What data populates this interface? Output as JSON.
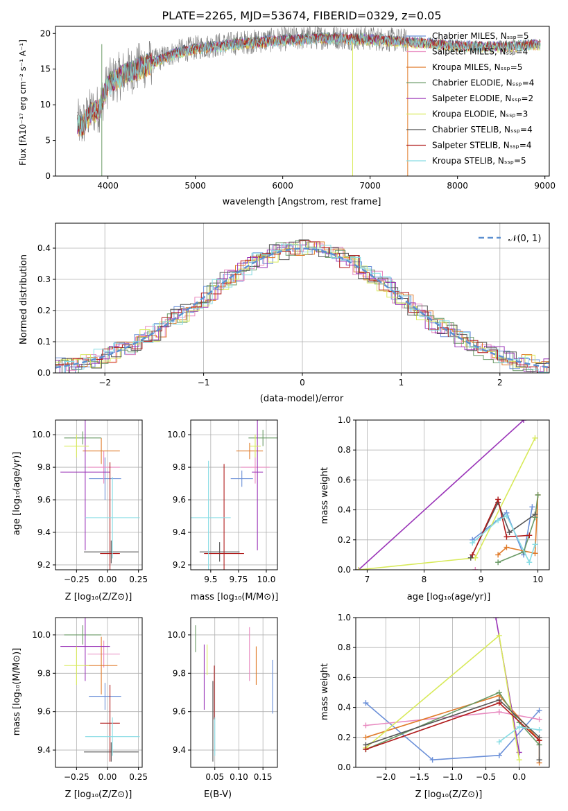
{
  "figure_title": "PLATE=2265, MJD=53674, FIBERID=0329, z=0.05",
  "series_styles": [
    {
      "name": "Chabrier MILES",
      "nssp": "5",
      "color": "#6a8fd8"
    },
    {
      "name": "Salpeter MILES",
      "nssp": "4",
      "color": "#e88ac0"
    },
    {
      "name": "Kroupa MILES",
      "nssp": "5",
      "color": "#e07b2a"
    },
    {
      "name": "Chabrier ELODIE",
      "nssp": "4",
      "color": "#6a9a66"
    },
    {
      "name": "Salpeter ELODIE",
      "nssp": "2",
      "color": "#9a34b8"
    },
    {
      "name": "Kroupa ELODIE",
      "nssp": "3",
      "color": "#d8ea5a"
    },
    {
      "name": "Chabrier STELIB",
      "nssp": "4",
      "color": "#555555"
    },
    {
      "name": "Salpeter STELIB",
      "nssp": "4",
      "color": "#b01a1a"
    },
    {
      "name": "Kroupa STELIB",
      "nssp": "5",
      "color": "#86dce4"
    }
  ],
  "chart_data": [
    {
      "id": "spectrum",
      "type": "line",
      "xlabel": "wavelength [Angstrom, rest frame]",
      "ylabel": "Flux [fλ10⁻¹⁷ erg cm⁻² s⁻¹ A⁻¹]",
      "xlim": [
        3400,
        9050
      ],
      "ylim": [
        0,
        21
      ],
      "xticks": [
        "4000",
        "5000",
        "6000",
        "7000",
        "8000",
        "9000"
      ],
      "yticks": [
        "0",
        "5",
        "10",
        "15",
        "20"
      ],
      "legend": [
        "Chabrier MILES, Nₛₛₚ=5",
        "Salpeter MILES, Nₛₛₚ=4",
        "Kroupa MILES, Nₛₛₚ=5",
        "Chabrier ELODIE, Nₛₛₚ=4",
        "Salpeter ELODIE, Nₛₛₚ=2",
        "Kroupa ELODIE, Nₛₛₚ=3",
        "Chabrier STELIB, Nₛₛₚ=4",
        "Salpeter STELIB, Nₛₛₚ=4",
        "Kroupa STELIB, Nₛₛₚ=5"
      ],
      "continuum": [
        [
          3650,
          7.5
        ],
        [
          3700,
          7
        ],
        [
          3800,
          9
        ],
        [
          3900,
          9.5
        ],
        [
          4000,
          13
        ],
        [
          4200,
          14.5
        ],
        [
          4400,
          15.5
        ],
        [
          4600,
          16.5
        ],
        [
          4800,
          17.5
        ],
        [
          5000,
          18
        ],
        [
          5200,
          18.3
        ],
        [
          5500,
          18.7
        ],
        [
          6000,
          19.2
        ],
        [
          6500,
          19.5
        ],
        [
          7000,
          19.3
        ],
        [
          7400,
          19.0
        ],
        [
          7800,
          18.6
        ],
        [
          8200,
          18.3
        ],
        [
          8600,
          18.3
        ],
        [
          8800,
          18.5
        ],
        [
          8950,
          18.6
        ]
      ],
      "model_range": [
        3650,
        8950
      ],
      "data_range": [
        3650,
        7420
      ],
      "drops": [
        [
          3930,
          0
        ],
        [
          6800,
          0
        ],
        [
          7430,
          0
        ]
      ]
    },
    {
      "id": "residuals",
      "type": "histogram",
      "xlabel": "(data-model)/error",
      "ylabel": "Normed distribution",
      "xlim": [
        -2.5,
        2.5
      ],
      "ylim": [
        0,
        0.48
      ],
      "xticks": [
        "−2",
        "−1",
        "0",
        "1",
        "2"
      ],
      "yticks": [
        "0.0",
        "0.1",
        "0.2",
        "0.3",
        "0.4"
      ],
      "legend": "𝒩(0, 1)",
      "bin_width": 0.1
    },
    {
      "id": "age_vs_Z",
      "type": "errorbar",
      "xlabel": "Z [log₁₀(Z/Z⊙)]",
      "ylabel": "age  [log₁₀(age/yr)]",
      "xlim": [
        -0.42,
        0.28
      ],
      "ylim": [
        9.17,
        10.09
      ],
      "xticks": [
        "−0.25",
        "0.00",
        "0.25"
      ],
      "yticks": [
        "9.2",
        "9.4",
        "9.6",
        "9.8",
        "10.0"
      ],
      "points": [
        {
          "x": -0.02,
          "xerr": 0.13,
          "y": 9.73,
          "yerr": 0.13
        },
        {
          "x": -0.03,
          "xerr": 0.13,
          "y": 9.8,
          "yerr": 0.1
        },
        {
          "x": -0.05,
          "xerr": 0.15,
          "y": 9.9,
          "yerr": 0.08
        },
        {
          "x": -0.2,
          "xerr": 0.15,
          "y": 9.98,
          "yerr": 0.04
        },
        {
          "x": -0.18,
          "xerr": 0.2,
          "y": 9.77,
          "yerr": 0.48
        },
        {
          "x": -0.25,
          "xerr": 0.1,
          "y": 9.93,
          "yerr": 0.07
        },
        {
          "x": 0.03,
          "xerr": 0.22,
          "y": 9.28,
          "yerr": 0.07
        },
        {
          "x": 0.02,
          "xerr": 0.08,
          "y": 9.27,
          "yerr": 0.56
        },
        {
          "x": 0.04,
          "xerr": 0.22,
          "y": 9.49,
          "yerr": 0.25
        }
      ]
    },
    {
      "id": "age_vs_mass",
      "type": "errorbar",
      "xlabel": "mass [log₁₀(M/M⊙)]",
      "ylabel": "",
      "xlim": [
        9.32,
        10.1
      ],
      "ylim": [
        9.17,
        10.09
      ],
      "xticks": [
        "9.5",
        "9.75",
        "10.0"
      ],
      "yticks": [
        "9.2",
        "9.4",
        "9.6",
        "9.8",
        "10.0"
      ],
      "points": [
        {
          "x": 9.78,
          "xerr": 0.1,
          "y": 9.73,
          "yerr": 0.05
        },
        {
          "x": 9.9,
          "xerr": 0.13,
          "y": 9.8,
          "yerr": 0.1
        },
        {
          "x": 9.85,
          "xerr": 0.12,
          "y": 9.9,
          "yerr": 0.05
        },
        {
          "x": 9.97,
          "xerr": 0.13,
          "y": 9.98,
          "yerr": 0.05
        },
        {
          "x": 9.92,
          "xerr": 0.05,
          "y": 9.77,
          "yerr": 0.48
        },
        {
          "x": 9.9,
          "xerr": 0.05,
          "y": 9.93,
          "yerr": 0.07
        },
        {
          "x": 9.58,
          "xerr": 0.18,
          "y": 9.28,
          "yerr": 0.06
        },
        {
          "x": 9.62,
          "xerr": 0.18,
          "y": 9.27,
          "yerr": 0.55
        },
        {
          "x": 9.48,
          "xerr": 0.2,
          "y": 9.49,
          "yerr": 0.35
        }
      ]
    },
    {
      "id": "mw_vs_age",
      "type": "line",
      "xlabel": "age  [log₁₀(age/yr)]",
      "ylabel": "mass weight",
      "xlim": [
        6.8,
        10.2
      ],
      "ylim": [
        0,
        1
      ],
      "xticks": [
        "7",
        "8",
        "9",
        "10"
      ],
      "yticks": [
        "0.0",
        "0.2",
        "0.4",
        "0.6",
        "0.8",
        "1.0"
      ],
      "series": [
        {
          "x": [
            8.85,
            9.45,
            9.75,
            9.9
          ],
          "y": [
            0.2,
            0.38,
            0.1,
            0.42
          ]
        },
        {
          "x": 8.9,
          "y": 0
        },
        {
          "x": [
            9.3,
            9.45,
            9.95,
            10.0
          ],
          "y": [
            0.1,
            0.15,
            0.11,
            0.5
          ]
        },
        {
          "x": [
            9.3,
            9.75,
            9.95,
            10.0
          ],
          "y": [
            0.05,
            0.12,
            0.35,
            0.5
          ]
        },
        {
          "x": [
            6.85,
            9.75
          ],
          "y": [
            0.0,
            1.0
          ]
        },
        {
          "x": [
            6.85,
            8.9,
            9.95
          ],
          "y": [
            0.0,
            0.08,
            0.88
          ]
        },
        {
          "x": [
            8.82,
            9.3,
            9.5,
            9.95
          ],
          "y": [
            0.08,
            0.45,
            0.25,
            0.37
          ]
        },
        {
          "x": [
            8.85,
            9.3,
            9.45,
            9.85
          ],
          "y": [
            0.1,
            0.47,
            0.22,
            0.23
          ]
        },
        {
          "x": [
            8.85,
            9.3,
            9.45,
            9.85,
            9.95
          ],
          "y": [
            0.18,
            0.33,
            0.36,
            0.05,
            0.17
          ]
        }
      ]
    },
    {
      "id": "mass_vs_Z",
      "type": "errorbar",
      "xlabel": "Z [log₁₀(Z/Z⊙)]",
      "ylabel": "mass [log₁₀(M/M⊙)]",
      "xlim": [
        -0.42,
        0.28
      ],
      "ylim": [
        9.31,
        10.09
      ],
      "xticks": [
        "−0.25",
        "0.00",
        "0.25"
      ],
      "yticks": [
        "9.4",
        "9.6",
        "9.8",
        "10.0"
      ],
      "points": [
        {
          "x": -0.02,
          "xerr": 0.13,
          "y": 9.68,
          "yerr": 0.07
        },
        {
          "x": -0.03,
          "xerr": 0.13,
          "y": 9.9,
          "yerr": 0.07
        },
        {
          "x": -0.05,
          "xerr": 0.13,
          "y": 9.84,
          "yerr": 0.15
        },
        {
          "x": -0.2,
          "xerr": 0.15,
          "y": 10.0,
          "yerr": 0.05
        },
        {
          "x": -0.18,
          "xerr": 0.2,
          "y": 9.94,
          "yerr": 0.18
        },
        {
          "x": -0.25,
          "xerr": 0.1,
          "y": 9.84,
          "yerr": 0.1
        },
        {
          "x": 0.03,
          "xerr": 0.22,
          "y": 9.39,
          "yerr": 0.05
        },
        {
          "x": 0.02,
          "xerr": 0.08,
          "y": 9.54,
          "yerr": 0.2
        },
        {
          "x": 0.04,
          "xerr": 0.22,
          "y": 9.47,
          "yerr": 0.1
        }
      ]
    },
    {
      "id": "mass_vs_EBV",
      "type": "errorbar",
      "xlabel": "E(B-V)",
      "ylabel": "",
      "xlim": [
        0.0,
        0.18
      ],
      "ylim": [
        9.31,
        10.09
      ],
      "xticks": [
        "0.05",
        "0.10",
        "0.15"
      ],
      "yticks": [
        "9.4",
        "9.6",
        "9.8",
        "10.0"
      ],
      "points": [
        {
          "x": 0.17,
          "xerr": 0,
          "y": 9.73,
          "yerr": 0.14
        },
        {
          "x": 0.122,
          "xerr": 0,
          "y": 9.9,
          "yerr": 0.14
        },
        {
          "x": 0.136,
          "xerr": 0,
          "y": 9.84,
          "yerr": 0.1
        },
        {
          "x": 0.01,
          "xerr": 0,
          "y": 9.98,
          "yerr": 0.07
        },
        {
          "x": 0.028,
          "xerr": 0,
          "y": 9.78,
          "yerr": 0.17
        },
        {
          "x": 0.034,
          "xerr": 0,
          "y": 9.87,
          "yerr": 0.08
        },
        {
          "x": 0.046,
          "xerr": 0,
          "y": 9.55,
          "yerr": 0.21
        },
        {
          "x": 0.049,
          "xerr": 0,
          "y": 9.7,
          "yerr": 0.14
        },
        {
          "x": 0.05,
          "xerr": 0,
          "y": 9.47,
          "yerr": 0.1
        }
      ]
    },
    {
      "id": "mw_vs_Z",
      "type": "line",
      "xlabel": "Z [log₁₀(Z/Z⊙)]",
      "ylabel": "mass weight",
      "xlim": [
        -2.45,
        0.45
      ],
      "ylim": [
        0,
        1
      ],
      "xticks": [
        "−2.0",
        "−1.5",
        "−1.0",
        "−0.5",
        "0.0"
      ],
      "yticks": [
        "0.0",
        "0.2",
        "0.4",
        "0.6",
        "0.8",
        "1.0"
      ],
      "series": [
        {
          "x": [
            -2.3,
            -1.3,
            -0.3,
            0.3
          ],
          "y": [
            0.43,
            0.05,
            0.08,
            0.38
          ]
        },
        {
          "x": [
            -2.3,
            -0.3,
            0.3
          ],
          "y": [
            0.28,
            0.37,
            0.32
          ]
        },
        {
          "x": [
            -2.3,
            -0.3,
            0.3,
            0.3
          ],
          "y": [
            0.2,
            0.48,
            0.18,
            0.03
          ]
        },
        {
          "x": [
            -2.3,
            -0.3,
            0.0,
            0.3
          ],
          "y": [
            0.12,
            0.5,
            0.3,
            0.15
          ]
        },
        {
          "x": [
            -0.35,
            0.0
          ],
          "y": [
            1.0,
            0.1
          ]
        },
        {
          "x": [
            -2.3,
            -0.3,
            0.0
          ],
          "y": [
            0.13,
            0.88,
            0.05
          ]
        },
        {
          "x": [
            -2.3,
            -0.3,
            0.3,
            0.3
          ],
          "y": [
            0.15,
            0.45,
            0.2,
            0.05
          ]
        },
        {
          "x": [
            -2.3,
            -0.3,
            0.3
          ],
          "y": [
            0.12,
            0.43,
            0.18
          ]
        },
        {
          "x": [
            -0.3,
            0.0,
            0.3
          ],
          "y": [
            0.17,
            0.27,
            0.25
          ]
        }
      ]
    }
  ]
}
